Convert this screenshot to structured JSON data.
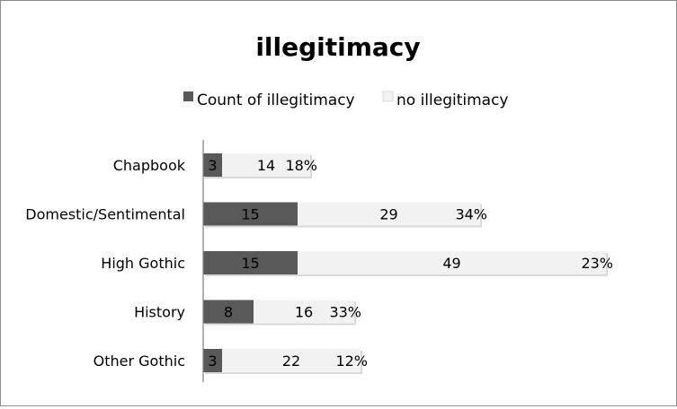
{
  "chart_data": {
    "type": "bar",
    "orientation": "horizontal",
    "stacked": true,
    "title": "illegitimacy",
    "legend_position": "top",
    "grid": false,
    "xlim": [
      0,
      65
    ],
    "categories": [
      "Chapbook",
      "Domestic/Sentimental",
      "High Gothic",
      "History",
      "Other Gothic"
    ],
    "series": [
      {
        "name": "Count of illegitimacy",
        "values": [
          3,
          15,
          15,
          8,
          3
        ],
        "color": "#595959"
      },
      {
        "name": "no illegitimacy",
        "values": [
          14,
          29,
          49,
          16,
          22
        ],
        "color": "#f2f2f2"
      }
    ],
    "percent_labels": [
      "18%",
      "34%",
      "23%",
      "33%",
      "12%"
    ],
    "colors": {
      "axis": "#7f7f7f",
      "text": "#000000",
      "bar_shadow": "#d9d9d9",
      "frame": "#8c8c8c"
    }
  }
}
